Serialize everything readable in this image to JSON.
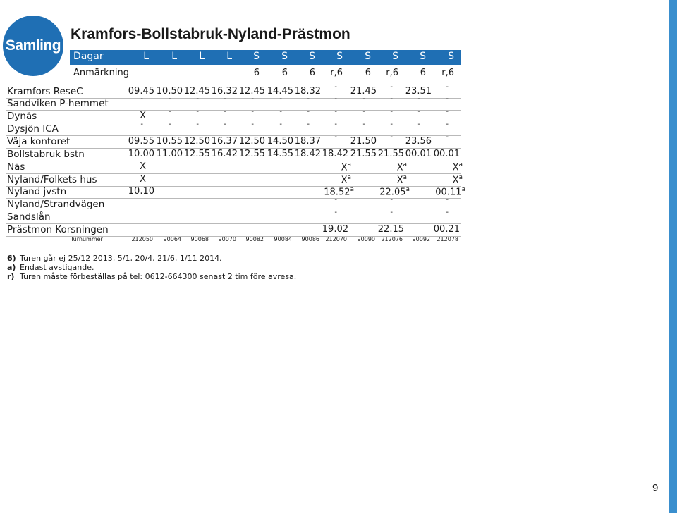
{
  "brand_label": "Samling",
  "title": "Kramfors-Bollstabruk-Nyland-Prästmon",
  "header": {
    "days_label": "Dagar",
    "days": [
      "L",
      "L",
      "L",
      "L",
      "S",
      "S",
      "S",
      "S",
      "S",
      "S",
      "S",
      "S"
    ],
    "notes_label": "Anmärkning",
    "notes": [
      "",
      "",
      "",
      "",
      "6",
      "6",
      "6",
      "r,6",
      "6",
      "r,6",
      "6",
      "r,6"
    ]
  },
  "stops": [
    {
      "name": "Kramfors ReseC",
      "times": [
        "09.45",
        "10.50",
        "12.45",
        "16.32",
        "12.45",
        "14.45",
        "18.32",
        "-",
        "21.45",
        "-",
        "23.51",
        "-"
      ]
    },
    {
      "name": "Sandviken P-hemmet",
      "times": [
        "-",
        "-",
        "-",
        "-",
        "-",
        "-",
        "-",
        "-",
        "-",
        "-",
        "-",
        "-"
      ]
    },
    {
      "name": "Dynäs",
      "times": [
        "X",
        "-",
        "-",
        "-",
        "-",
        "-",
        "-",
        "-",
        "-",
        "-",
        "-",
        "-"
      ]
    },
    {
      "name": "Dysjön ICA",
      "times": [
        "-",
        "-",
        "-",
        "-",
        "-",
        "-",
        "-",
        "-",
        "-",
        "-",
        "-",
        "-"
      ]
    },
    {
      "name": "Väja kontoret",
      "times": [
        "09.55",
        "10.55",
        "12.50",
        "16.37",
        "12.50",
        "14.50",
        "18.37",
        "-",
        "21.50",
        "-",
        "23.56",
        "-"
      ]
    },
    {
      "name": "Bollstabruk bstn",
      "times": [
        "10.00",
        "11.00",
        "12.55",
        "16.42",
        "12.55",
        "14.55",
        "18.42",
        "18.42",
        "21.55",
        "21.55",
        "00.01",
        "00.01"
      ]
    },
    {
      "name": "Näs",
      "times": [
        "X",
        "",
        "",
        "",
        "",
        "",
        "",
        "X",
        "",
        "X",
        "",
        "X"
      ],
      "sups": [
        "",
        "",
        "",
        "",
        "",
        "",
        "",
        "a",
        "",
        "a",
        "",
        "a"
      ]
    },
    {
      "name": "Nyland/Folkets hus",
      "times": [
        "X",
        "",
        "",
        "",
        "",
        "",
        "",
        "X",
        "",
        "X",
        "",
        "X"
      ],
      "sups": [
        "",
        "",
        "",
        "",
        "",
        "",
        "",
        "a",
        "",
        "a",
        "",
        "a"
      ]
    },
    {
      "name": "Nyland jvstn",
      "times": [
        "10.10",
        "",
        "",
        "",
        "",
        "",
        "",
        "18.52",
        "",
        "22.05",
        "",
        "00.11"
      ],
      "sups": [
        "",
        "",
        "",
        "",
        "",
        "",
        "",
        "a",
        "",
        "a",
        "",
        "a"
      ]
    },
    {
      "name": "Nyland/Strandvägen",
      "times": [
        "",
        "",
        "",
        "",
        "",
        "",
        "",
        "-",
        "",
        "-",
        "",
        "-"
      ]
    },
    {
      "name": "Sandslån",
      "times": [
        "",
        "",
        "",
        "",
        "",
        "",
        "",
        "-",
        "",
        "-",
        "",
        "-"
      ]
    },
    {
      "name": "Prästmon Korsningen",
      "times": [
        "",
        "",
        "",
        "",
        "",
        "",
        "",
        "19.02",
        "",
        "22.15",
        "",
        "00.21"
      ]
    }
  ],
  "turnummer_label": "Turnummer",
  "turnummer": [
    "212050",
    "90064",
    "90068",
    "90070",
    "90082",
    "90084",
    "90086",
    "212070",
    "90090",
    "212076",
    "90092",
    "212078"
  ],
  "footnotes": [
    {
      "mark": "6)",
      "text": "Turen går ej 25/12 2013, 5/1, 20/4, 21/6, 1/11 2014."
    },
    {
      "mark": "a)",
      "text": "Endast avstigande."
    },
    {
      "mark": "r)",
      "text": "Turen måste förbeställas på tel: 0612-664300 senast 2 tim före avresa."
    }
  ],
  "page_number": "9",
  "colors": {
    "brand_blue": "#1f6fb4",
    "side_bar": "#3a8fce"
  }
}
